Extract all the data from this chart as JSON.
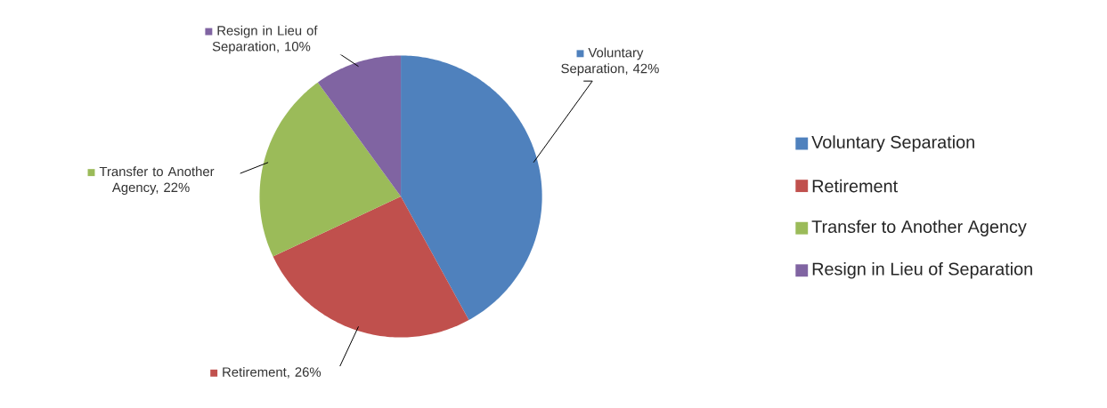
{
  "chart_data": {
    "type": "pie",
    "categories": [
      "Voluntary Separation",
      "Retirement",
      "Transfer to Another Agency",
      "Resign in Lieu of Separation"
    ],
    "values": [
      42,
      26,
      22,
      10
    ],
    "value_labels": [
      "Voluntary Separation, 42%",
      "Retirement, 26%",
      "Transfer to Another Agency, 22%",
      "Resign in Lieu of Separation, 10%"
    ],
    "colors": [
      "#4f81bd",
      "#c0504d",
      "#9bbb59",
      "#8064a2"
    ],
    "legend": "right"
  }
}
